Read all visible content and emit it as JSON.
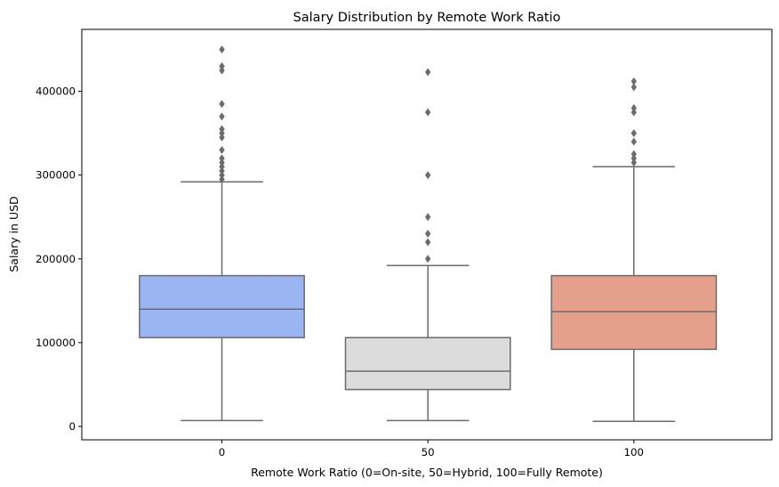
{
  "chart_data": {
    "type": "box",
    "title": "Salary Distribution by Remote Work Ratio",
    "xlabel": "Remote Work Ratio (0=On-site, 50=Hybrid, 100=Fully Remote)",
    "ylabel": "Salary in USD",
    "ylim": [
      -16000,
      474000
    ],
    "yticks": [
      0,
      100000,
      200000,
      300000,
      400000
    ],
    "ytick_labels": [
      "0",
      "100000",
      "200000",
      "300000",
      "400000"
    ],
    "grid": false,
    "boxes": [
      {
        "category": "0",
        "color": "#9ab5f2",
        "whisker_low": 7000,
        "q1": 106000,
        "median": 140000,
        "q3": 180000,
        "whisker_high": 292000,
        "outliers": [
          450000,
          430000,
          425000,
          385000,
          370000,
          355000,
          350000,
          345000,
          330000,
          320000,
          315000,
          310000,
          305000,
          300000,
          295000
        ]
      },
      {
        "category": "50",
        "color": "#dcdcdc",
        "whisker_low": 7000,
        "q1": 44000,
        "median": 66000,
        "q3": 106000,
        "whisker_high": 192000,
        "outliers": [
          423000,
          375000,
          300000,
          250000,
          230000,
          220000,
          200000
        ]
      },
      {
        "category": "100",
        "color": "#e4a08a",
        "whisker_low": 6000,
        "q1": 92000,
        "median": 137000,
        "q3": 180000,
        "whisker_high": 310000,
        "outliers": [
          412000,
          405000,
          380000,
          375000,
          350000,
          340000,
          325000,
          320000,
          315000
        ]
      }
    ]
  }
}
